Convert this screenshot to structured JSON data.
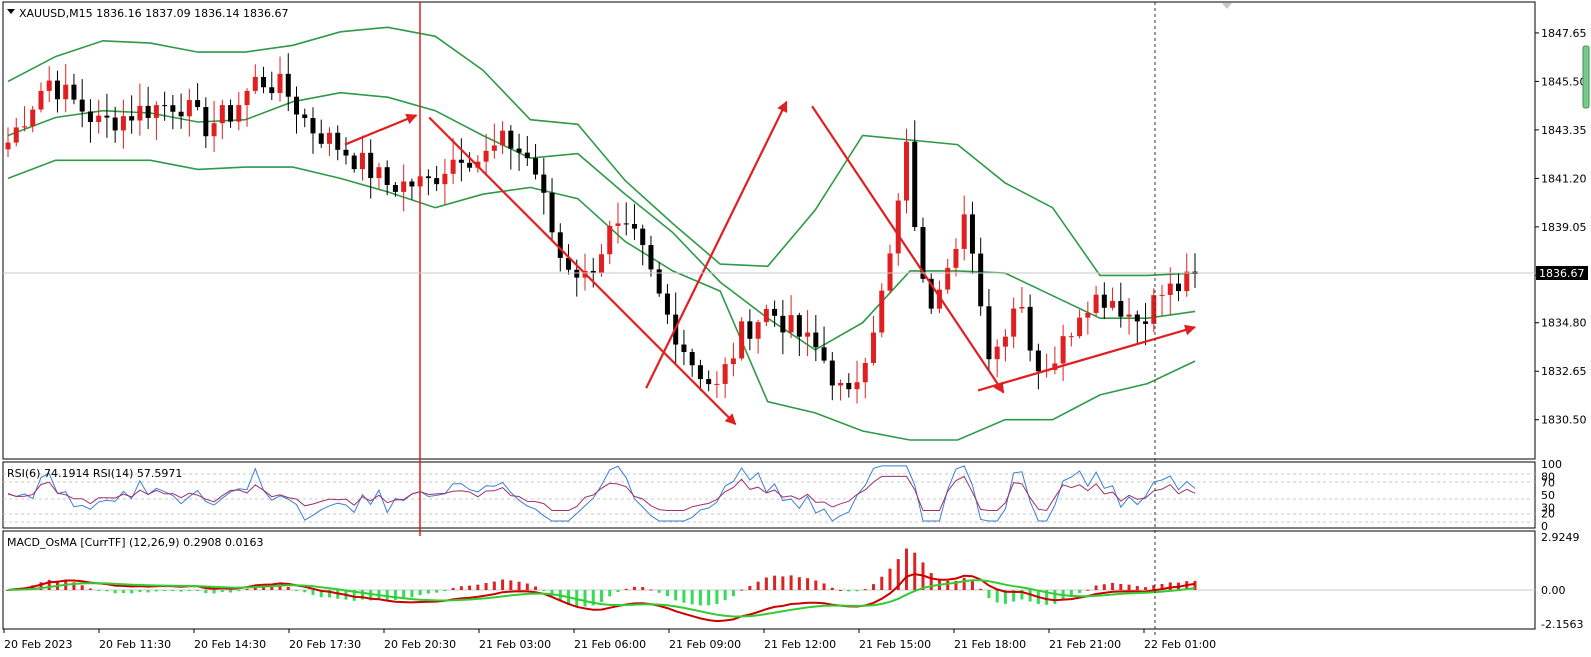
{
  "colors": {
    "bull": "#e02020",
    "bear": "#000000",
    "band": "#2e9a48",
    "annotation": "#e02020",
    "rsi6": "#3a7fd5",
    "rsi14": "#a0306a",
    "macd_line": "#cc0000",
    "signal_line": "#33cc33",
    "hist_pos": "#dd2222",
    "hist_neg": "#33dd55",
    "grid": "#c8c8c8"
  },
  "chart_data": [
    {
      "type": "candlestick",
      "header": "XAUUSD,M15  1836.16 1837.09 1836.14 1836.67",
      "ylim": [
        1829.6,
        1848.4
      ],
      "price_ticks": [
        "1847.65",
        "1845.50",
        "1843.35",
        "1841.20",
        "1839.05",
        "1836.90",
        "1834.80",
        "1832.65",
        "1830.50"
      ],
      "current_price": "1836.67",
      "bollinger": {
        "upper": [
          1845.5,
          1846.6,
          1847.3,
          1847.2,
          1846.8,
          1846.8,
          1847.1,
          1847.7,
          1847.9,
          1847.5,
          1846.0,
          1843.8,
          1843.6,
          1841.1,
          1839.2,
          1837.4,
          1837.3,
          1839.8,
          1843.1,
          1842.9,
          1842.7,
          1841.0,
          1839.9,
          1836.9,
          1836.9,
          1837.0
        ],
        "middle": [
          1843.1,
          1843.9,
          1844.2,
          1844.1,
          1843.7,
          1843.8,
          1844.6,
          1845.0,
          1844.8,
          1844.2,
          1843.1,
          1842.1,
          1842.3,
          1840.5,
          1838.8,
          1836.6,
          1835.0,
          1833.6,
          1834.8,
          1837.1,
          1837.1,
          1837.0,
          1836.0,
          1835.0,
          1835.0,
          1835.3
        ],
        "lower": [
          1841.2,
          1842.0,
          1842.0,
          1842.0,
          1841.6,
          1841.7,
          1841.7,
          1841.2,
          1840.6,
          1839.9,
          1840.5,
          1840.8,
          1840.3,
          1838.4,
          1837.1,
          1836.2,
          1831.3,
          1830.8,
          1830.0,
          1829.6,
          1829.6,
          1830.5,
          1830.5,
          1831.6,
          1832.1,
          1833.1
        ]
      },
      "annotations": [
        {
          "from": [
            1843.2,
            1842.7
          ],
          "to": [
            1846.0,
            1844.0
          ]
        },
        {
          "from": [
            1846.5,
            1843.9
          ],
          "to": [
            1858.5,
            1830.3
          ]
        },
        {
          "from": [
            1855.0,
            1831.9
          ],
          "to": [
            1860.5,
            1844.6
          ]
        },
        {
          "from": [
            1861.5,
            1844.4
          ],
          "to": [
            1869.0,
            1831.7
          ]
        },
        {
          "from": [
            1868.0,
            1831.8
          ],
          "to": [
            1876.5,
            1834.6
          ]
        }
      ]
    },
    {
      "type": "line",
      "header": "RSI(6) 74.1914  RSI(14) 57.5971",
      "ylim": [
        0,
        100
      ],
      "ticks": [
        "100",
        "80",
        "70",
        "50",
        "30",
        "20",
        "0"
      ]
    },
    {
      "type": "bar",
      "header": "MACD_OsMA [CurrTF] (12,26,9) 0.2908 0.0163",
      "ylim": [
        -2.1563,
        2.9249
      ],
      "ticks": [
        "2.9249",
        "0.00",
        "-2.1563"
      ]
    }
  ],
  "time_labels": [
    "20 Feb 2023",
    "20 Feb 11:30",
    "20 Feb 14:30",
    "20 Feb 17:30",
    "20 Feb 20:30",
    "21 Feb 03:00",
    "21 Feb 06:00",
    "21 Feb 09:00",
    "21 Feb 12:00",
    "21 Feb 15:00",
    "21 Feb 18:00",
    "21 Feb 21:00",
    "22 Feb 01:00"
  ]
}
